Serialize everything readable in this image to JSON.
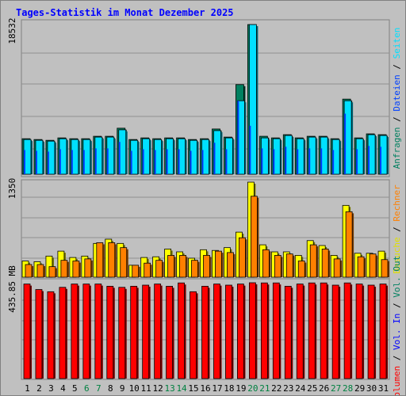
{
  "page": {
    "title": "Tages-Statistik im Monat Dezember 2025"
  },
  "colors": {
    "background": "#c0c0c0",
    "plot": "#c0c0c0",
    "grid": "#909090",
    "anfragen": "#008060",
    "dateien": "#0040ff",
    "seiten": "#00e0ff",
    "besuche": "#ffff00",
    "rechner": "#ff8000",
    "volumen": "#ff0000",
    "weekend": "#008040"
  },
  "chart_data": [
    {
      "type": "bar",
      "panel": "requests",
      "ymax_label": "18532",
      "ylim": [
        0,
        18532
      ],
      "side_labels": [
        {
          "text": "Anfragen",
          "color": "#008060"
        },
        {
          "text": "Dateien",
          "color": "#0040ff"
        },
        {
          "text": "Seiten",
          "color": "#00e0ff"
        }
      ],
      "categories": [
        "1",
        "2",
        "3",
        "4",
        "5",
        "6",
        "7",
        "8",
        "9",
        "10",
        "11",
        "12",
        "13",
        "14",
        "15",
        "16",
        "17",
        "18",
        "19",
        "20",
        "21",
        "22",
        "23",
        "24",
        "25",
        "26",
        "27",
        "28",
        "29",
        "30",
        "31"
      ],
      "series": [
        {
          "name": "Anfragen",
          "values": [
            4400,
            4300,
            4200,
            4500,
            4400,
            4400,
            4700,
            4700,
            5700,
            4300,
            4500,
            4400,
            4500,
            4500,
            4300,
            4400,
            5600,
            4600,
            11100,
            18532,
            4700,
            4500,
            4900,
            4500,
            4700,
            4700,
            4400,
            9300,
            4500,
            5000,
            4900
          ]
        },
        {
          "name": "Dateien",
          "values": [
            3000,
            2900,
            2800,
            3100,
            3000,
            3000,
            3200,
            3200,
            4000,
            2900,
            3100,
            3000,
            3100,
            3100,
            2900,
            3000,
            3900,
            3100,
            9100,
            6000,
            3200,
            3100,
            3400,
            3100,
            3200,
            3200,
            3000,
            7500,
            3100,
            3500,
            3400
          ]
        },
        {
          "name": "Seiten",
          "values": [
            4300,
            4200,
            4100,
            4400,
            4300,
            4300,
            4600,
            4600,
            5500,
            4200,
            4400,
            4300,
            4400,
            4400,
            4200,
            4300,
            5400,
            4500,
            9100,
            18532,
            4500,
            4400,
            4800,
            4400,
            4600,
            4600,
            4300,
            9100,
            4400,
            4900,
            4800
          ]
        }
      ]
    },
    {
      "type": "bar",
      "panel": "visits",
      "ymax_label": "1350",
      "ylim": [
        0,
        1350
      ],
      "side_labels": [
        {
          "text": "Besuche",
          "color": "#e0e000"
        },
        {
          "text": "Rechner",
          "color": "#ff8000"
        }
      ],
      "categories": [
        "1",
        "2",
        "3",
        "4",
        "5",
        "6",
        "7",
        "8",
        "9",
        "10",
        "11",
        "12",
        "13",
        "14",
        "15",
        "16",
        "17",
        "18",
        "19",
        "20",
        "21",
        "22",
        "23",
        "24",
        "25",
        "26",
        "27",
        "28",
        "29",
        "30",
        "31"
      ],
      "series": [
        {
          "name": "Besuche",
          "values": [
            230,
            220,
            300,
            370,
            280,
            300,
            480,
            540,
            480,
            170,
            280,
            290,
            400,
            360,
            270,
            390,
            380,
            420,
            640,
            1350,
            460,
            360,
            360,
            310,
            520,
            450,
            310,
            1020,
            340,
            340,
            370
          ]
        },
        {
          "name": "Rechner",
          "values": [
            180,
            180,
            150,
            240,
            230,
            260,
            490,
            490,
            420,
            170,
            200,
            240,
            310,
            310,
            240,
            310,
            370,
            350,
            560,
            1150,
            390,
            310,
            330,
            230,
            460,
            400,
            260,
            930,
            290,
            330,
            250
          ]
        }
      ]
    },
    {
      "type": "bar",
      "panel": "volume",
      "ymax_label": "435.85 MB",
      "ylim": [
        0,
        435.85
      ],
      "side_labels": [
        {
          "text": "Volumen",
          "color": "#ff0000"
        },
        {
          "text": "Vol. In",
          "color": "#0000ff"
        },
        {
          "text": "Vol. Out",
          "color": "#008060"
        }
      ],
      "categories": [
        "1",
        "2",
        "3",
        "4",
        "5",
        "6",
        "7",
        "8",
        "9",
        "10",
        "11",
        "12",
        "13",
        "14",
        "15",
        "16",
        "17",
        "18",
        "19",
        "20",
        "21",
        "22",
        "23",
        "24",
        "25",
        "26",
        "27",
        "28",
        "29",
        "30",
        "31"
      ],
      "series": [
        {
          "name": "Volumen",
          "values": [
            430,
            405,
            395,
            415,
            430,
            430,
            430,
            420,
            415,
            420,
            425,
            430,
            420,
            435,
            395,
            420,
            430,
            425,
            430,
            435.85,
            435,
            435,
            420,
            430,
            435,
            435,
            425,
            435,
            430,
            425,
            430
          ]
        }
      ]
    }
  ],
  "x_axis": {
    "labels": [
      "1",
      "2",
      "3",
      "4",
      "5",
      "6",
      "7",
      "8",
      "9",
      "10",
      "11",
      "12",
      "13",
      "14",
      "15",
      "16",
      "17",
      "18",
      "19",
      "20",
      "21",
      "22",
      "23",
      "24",
      "25",
      "26",
      "27",
      "28",
      "29",
      "30",
      "31"
    ],
    "weekend_days": [
      "6",
      "7",
      "13",
      "14",
      "20",
      "21",
      "27",
      "28"
    ]
  }
}
